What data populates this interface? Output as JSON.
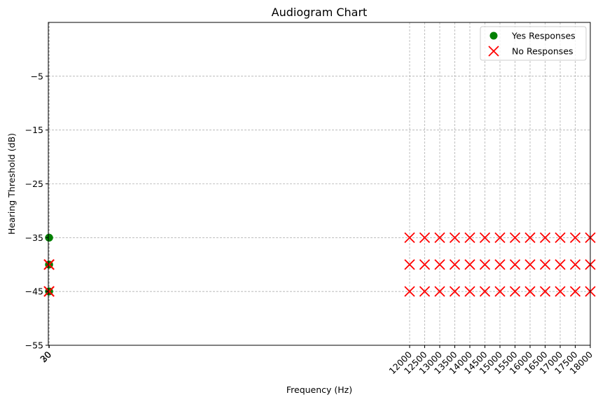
{
  "chart_data": {
    "type": "scatter",
    "title": "Audiogram Chart",
    "xlabel": "Frequency (Hz)",
    "ylabel": "Hearing Threshold (dB)",
    "xlim": [
      0,
      18000
    ],
    "ylim": [
      -55,
      5
    ],
    "y_inverted": true,
    "grid": true,
    "legend_position": "top-right",
    "x_ticks": [
      20,
      30,
      12000,
      12500,
      13000,
      13500,
      14000,
      14500,
      15000,
      15500,
      16000,
      16500,
      17000,
      17500,
      18000
    ],
    "x_tick_labels": [
      "20",
      "30",
      "12000",
      "12500",
      "13000",
      "13500",
      "14000",
      "14500",
      "15000",
      "15500",
      "16000",
      "16500",
      "17000",
      "17500",
      "18000"
    ],
    "y_ticks": [
      -5,
      -15,
      -25,
      -35,
      -45,
      -55
    ],
    "y_tick_labels": [
      "−5",
      "−15",
      "−25",
      "−35",
      "−45",
      "−55"
    ],
    "series": [
      {
        "name": "Yes Responses",
        "marker": "circle",
        "color": "#008000",
        "points": [
          [
            20,
            -35
          ],
          [
            20,
            -40
          ],
          [
            20,
            -45
          ],
          [
            30,
            -35
          ],
          [
            30,
            -40
          ],
          [
            30,
            -45
          ]
        ]
      },
      {
        "name": "No Responses",
        "marker": "x",
        "color": "#ff0000",
        "points": [
          [
            20,
            -40
          ],
          [
            20,
            -45
          ],
          [
            30,
            -40
          ],
          [
            30,
            -45
          ],
          [
            12000,
            -35
          ],
          [
            12000,
            -40
          ],
          [
            12000,
            -45
          ],
          [
            12500,
            -35
          ],
          [
            12500,
            -40
          ],
          [
            12500,
            -45
          ],
          [
            13000,
            -35
          ],
          [
            13000,
            -40
          ],
          [
            13000,
            -45
          ],
          [
            13500,
            -35
          ],
          [
            13500,
            -40
          ],
          [
            13500,
            -45
          ],
          [
            14000,
            -35
          ],
          [
            14000,
            -40
          ],
          [
            14000,
            -45
          ],
          [
            14500,
            -35
          ],
          [
            14500,
            -40
          ],
          [
            14500,
            -45
          ],
          [
            15000,
            -35
          ],
          [
            15000,
            -40
          ],
          [
            15000,
            -45
          ],
          [
            15500,
            -35
          ],
          [
            15500,
            -40
          ],
          [
            15500,
            -45
          ],
          [
            16000,
            -35
          ],
          [
            16000,
            -40
          ],
          [
            16000,
            -45
          ],
          [
            16500,
            -35
          ],
          [
            16500,
            -40
          ],
          [
            16500,
            -45
          ],
          [
            17000,
            -35
          ],
          [
            17000,
            -40
          ],
          [
            17000,
            -45
          ],
          [
            17500,
            -35
          ],
          [
            17500,
            -40
          ],
          [
            17500,
            -45
          ],
          [
            18000,
            -35
          ],
          [
            18000,
            -40
          ],
          [
            18000,
            -45
          ]
        ]
      }
    ]
  }
}
